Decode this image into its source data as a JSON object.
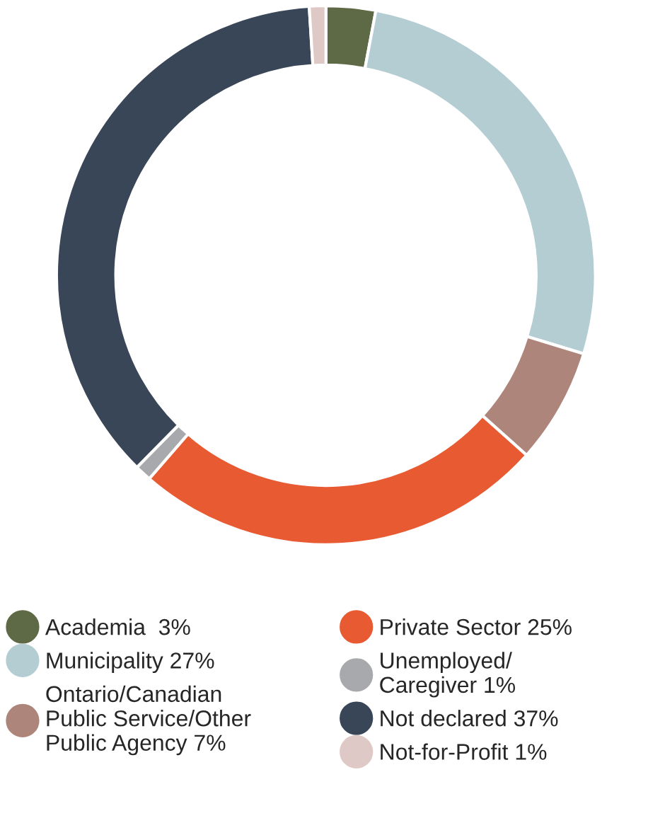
{
  "chart_data": {
    "type": "donut",
    "categories": [
      "Academia  3%",
      "Municipality 27%",
      "Ontario/Canadian\nPublic Service/Other\nPublic Agency 7%",
      "Private Sector 25%",
      "Unemployed/\nCaregiver 1%",
      "Not declared 37%",
      "Not-for-Profit 1%"
    ],
    "values": [
      3,
      27,
      7,
      25,
      1,
      37,
      1
    ],
    "colors": [
      "#5e6a46",
      "#b4cdd3",
      "#ad857a",
      "#e85a32",
      "#a8a9ac",
      "#394657",
      "#dfc9c6"
    ],
    "legend": "bottom"
  }
}
